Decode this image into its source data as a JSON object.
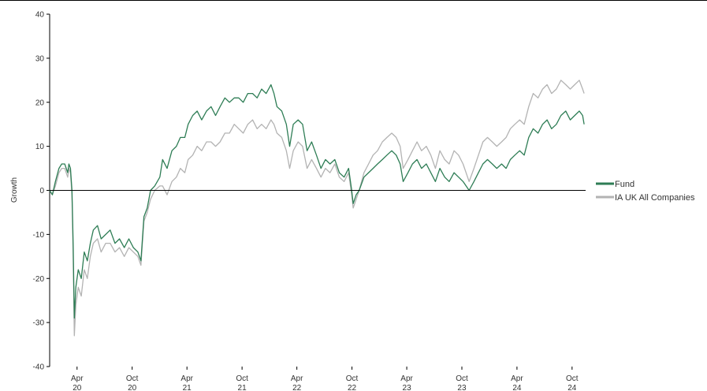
{
  "chart_data": {
    "type": "line",
    "ylabel": "Growth",
    "ylim": [
      -40,
      40
    ],
    "yticks": [
      "40",
      "30",
      "20",
      "10",
      "0",
      "-10",
      "-20",
      "-30",
      "-40"
    ],
    "xlim": [
      "2020-01-01",
      "2024-11-15"
    ],
    "xticks": [
      {
        "date": "2020-04-01",
        "month": "Apr",
        "year": "20"
      },
      {
        "date": "2020-10-01",
        "month": "Oct",
        "year": "20"
      },
      {
        "date": "2021-04-01",
        "month": "Apr",
        "year": "21"
      },
      {
        "date": "2021-10-01",
        "month": "Oct",
        "year": "21"
      },
      {
        "date": "2022-04-01",
        "month": "Apr",
        "year": "22"
      },
      {
        "date": "2022-10-01",
        "month": "Oct",
        "year": "22"
      },
      {
        "date": "2023-04-01",
        "month": "Apr",
        "year": "23"
      },
      {
        "date": "2023-10-01",
        "month": "Oct",
        "year": "23"
      },
      {
        "date": "2024-04-01",
        "month": "Apr",
        "year": "24"
      },
      {
        "date": "2024-10-01",
        "month": "Oct",
        "year": "24"
      }
    ],
    "zero_line": true,
    "grid": false,
    "legend_position": "right",
    "series": [
      {
        "name": "Fund",
        "color": "#2e7d55",
        "points": [
          [
            "2020-01-01",
            0
          ],
          [
            "2020-01-10",
            -1
          ],
          [
            "2020-01-20",
            2
          ],
          [
            "2020-02-01",
            5
          ],
          [
            "2020-02-10",
            6
          ],
          [
            "2020-02-20",
            6
          ],
          [
            "2020-03-01",
            4
          ],
          [
            "2020-03-05",
            6
          ],
          [
            "2020-03-10",
            5
          ],
          [
            "2020-03-15",
            0
          ],
          [
            "2020-03-19",
            -12
          ],
          [
            "2020-03-23",
            -29
          ],
          [
            "2020-03-28",
            -22
          ],
          [
            "2020-04-05",
            -18
          ],
          [
            "2020-04-15",
            -20
          ],
          [
            "2020-04-25",
            -14
          ],
          [
            "2020-05-05",
            -16
          ],
          [
            "2020-05-15",
            -12
          ],
          [
            "2020-05-25",
            -9
          ],
          [
            "2020-06-08",
            -8
          ],
          [
            "2020-06-20",
            -11
          ],
          [
            "2020-07-05",
            -10
          ],
          [
            "2020-07-20",
            -9
          ],
          [
            "2020-08-05",
            -12
          ],
          [
            "2020-08-20",
            -11
          ],
          [
            "2020-09-05",
            -13
          ],
          [
            "2020-09-20",
            -11
          ],
          [
            "2020-10-05",
            -13
          ],
          [
            "2020-10-20",
            -14
          ],
          [
            "2020-10-30",
            -16
          ],
          [
            "2020-11-09",
            -6
          ],
          [
            "2020-11-20",
            -4
          ],
          [
            "2020-12-01",
            0
          ],
          [
            "2020-12-15",
            1
          ],
          [
            "2021-01-01",
            3
          ],
          [
            "2021-01-10",
            7
          ],
          [
            "2021-01-25",
            5
          ],
          [
            "2021-02-10",
            9
          ],
          [
            "2021-02-25",
            10
          ],
          [
            "2021-03-10",
            12
          ],
          [
            "2021-03-25",
            12
          ],
          [
            "2021-04-05",
            15
          ],
          [
            "2021-04-20",
            17
          ],
          [
            "2021-05-05",
            18
          ],
          [
            "2021-05-20",
            16
          ],
          [
            "2021-06-05",
            18
          ],
          [
            "2021-06-20",
            19
          ],
          [
            "2021-07-05",
            17
          ],
          [
            "2021-07-20",
            19
          ],
          [
            "2021-08-05",
            21
          ],
          [
            "2021-08-20",
            20
          ],
          [
            "2021-09-05",
            21
          ],
          [
            "2021-09-20",
            21
          ],
          [
            "2021-10-05",
            20
          ],
          [
            "2021-10-20",
            22
          ],
          [
            "2021-11-05",
            22
          ],
          [
            "2021-11-20",
            21
          ],
          [
            "2021-12-05",
            23
          ],
          [
            "2021-12-20",
            22
          ],
          [
            "2022-01-05",
            24
          ],
          [
            "2022-01-15",
            22
          ],
          [
            "2022-01-25",
            19
          ],
          [
            "2022-02-10",
            18
          ],
          [
            "2022-02-25",
            15
          ],
          [
            "2022-03-08",
            10
          ],
          [
            "2022-03-20",
            15
          ],
          [
            "2022-04-05",
            16
          ],
          [
            "2022-04-20",
            15
          ],
          [
            "2022-05-05",
            9
          ],
          [
            "2022-05-20",
            11
          ],
          [
            "2022-06-05",
            8
          ],
          [
            "2022-06-20",
            5
          ],
          [
            "2022-07-05",
            7
          ],
          [
            "2022-07-20",
            6
          ],
          [
            "2022-08-05",
            7
          ],
          [
            "2022-08-20",
            4
          ],
          [
            "2022-09-05",
            3
          ],
          [
            "2022-09-20",
            5
          ],
          [
            "2022-09-30",
            0
          ],
          [
            "2022-10-05",
            -3
          ],
          [
            "2022-10-15",
            -1
          ],
          [
            "2022-10-25",
            0
          ],
          [
            "2022-11-10",
            3
          ],
          [
            "2022-11-25",
            4
          ],
          [
            "2022-12-10",
            5
          ],
          [
            "2022-12-25",
            6
          ],
          [
            "2023-01-10",
            7
          ],
          [
            "2023-01-25",
            8
          ],
          [
            "2023-02-10",
            9
          ],
          [
            "2023-02-25",
            8
          ],
          [
            "2023-03-10",
            6
          ],
          [
            "2023-03-20",
            2
          ],
          [
            "2023-04-05",
            4
          ],
          [
            "2023-04-20",
            6
          ],
          [
            "2023-05-05",
            7
          ],
          [
            "2023-05-20",
            5
          ],
          [
            "2023-06-05",
            6
          ],
          [
            "2023-06-20",
            4
          ],
          [
            "2023-07-05",
            2
          ],
          [
            "2023-07-20",
            5
          ],
          [
            "2023-08-05",
            3
          ],
          [
            "2023-08-20",
            2
          ],
          [
            "2023-09-05",
            4
          ],
          [
            "2023-09-20",
            3
          ],
          [
            "2023-10-05",
            2
          ],
          [
            "2023-10-25",
            0
          ],
          [
            "2023-11-10",
            2
          ],
          [
            "2023-11-25",
            4
          ],
          [
            "2023-12-10",
            6
          ],
          [
            "2023-12-25",
            7
          ],
          [
            "2024-01-10",
            6
          ],
          [
            "2024-01-25",
            5
          ],
          [
            "2024-02-10",
            6
          ],
          [
            "2024-02-25",
            5
          ],
          [
            "2024-03-10",
            7
          ],
          [
            "2024-03-25",
            8
          ],
          [
            "2024-04-10",
            9
          ],
          [
            "2024-04-25",
            8
          ],
          [
            "2024-05-10",
            12
          ],
          [
            "2024-05-25",
            14
          ],
          [
            "2024-06-10",
            13
          ],
          [
            "2024-06-25",
            15
          ],
          [
            "2024-07-10",
            16
          ],
          [
            "2024-07-25",
            14
          ],
          [
            "2024-08-10",
            15
          ],
          [
            "2024-08-25",
            17
          ],
          [
            "2024-09-10",
            18
          ],
          [
            "2024-09-25",
            16
          ],
          [
            "2024-10-10",
            17
          ],
          [
            "2024-10-25",
            18
          ],
          [
            "2024-11-05",
            17
          ],
          [
            "2024-11-10",
            15
          ]
        ]
      },
      {
        "name": "IA UK All Companies",
        "color": "#b3b3b3",
        "points": [
          [
            "2020-01-01",
            0
          ],
          [
            "2020-01-10",
            -1
          ],
          [
            "2020-01-20",
            1
          ],
          [
            "2020-02-01",
            4
          ],
          [
            "2020-02-10",
            5
          ],
          [
            "2020-02-20",
            5
          ],
          [
            "2020-03-01",
            3
          ],
          [
            "2020-03-05",
            5
          ],
          [
            "2020-03-10",
            4
          ],
          [
            "2020-03-15",
            -1
          ],
          [
            "2020-03-19",
            -15
          ],
          [
            "2020-03-23",
            -33
          ],
          [
            "2020-03-28",
            -26
          ],
          [
            "2020-04-05",
            -22
          ],
          [
            "2020-04-15",
            -24
          ],
          [
            "2020-04-25",
            -18
          ],
          [
            "2020-05-05",
            -20
          ],
          [
            "2020-05-15",
            -15
          ],
          [
            "2020-05-25",
            -12
          ],
          [
            "2020-06-08",
            -11
          ],
          [
            "2020-06-20",
            -14
          ],
          [
            "2020-07-05",
            -12
          ],
          [
            "2020-07-20",
            -12
          ],
          [
            "2020-08-05",
            -14
          ],
          [
            "2020-08-20",
            -13
          ],
          [
            "2020-09-05",
            -15
          ],
          [
            "2020-09-20",
            -13
          ],
          [
            "2020-10-05",
            -14
          ],
          [
            "2020-10-20",
            -15
          ],
          [
            "2020-10-30",
            -17
          ],
          [
            "2020-11-09",
            -7
          ],
          [
            "2020-11-20",
            -5
          ],
          [
            "2020-12-01",
            -2
          ],
          [
            "2020-12-15",
            0
          ],
          [
            "2021-01-01",
            1
          ],
          [
            "2021-01-10",
            1
          ],
          [
            "2021-01-25",
            -1
          ],
          [
            "2021-02-10",
            2
          ],
          [
            "2021-02-25",
            3
          ],
          [
            "2021-03-10",
            5
          ],
          [
            "2021-03-25",
            4
          ],
          [
            "2021-04-05",
            7
          ],
          [
            "2021-04-20",
            8
          ],
          [
            "2021-05-05",
            10
          ],
          [
            "2021-05-20",
            9
          ],
          [
            "2021-06-05",
            11
          ],
          [
            "2021-06-20",
            11
          ],
          [
            "2021-07-05",
            10
          ],
          [
            "2021-07-20",
            11
          ],
          [
            "2021-08-05",
            13
          ],
          [
            "2021-08-20",
            13
          ],
          [
            "2021-09-05",
            15
          ],
          [
            "2021-09-20",
            14
          ],
          [
            "2021-10-05",
            13
          ],
          [
            "2021-10-20",
            15
          ],
          [
            "2021-11-05",
            16
          ],
          [
            "2021-11-20",
            14
          ],
          [
            "2021-12-05",
            15
          ],
          [
            "2021-12-20",
            14
          ],
          [
            "2022-01-05",
            16
          ],
          [
            "2022-01-15",
            15
          ],
          [
            "2022-01-25",
            13
          ],
          [
            "2022-02-10",
            12
          ],
          [
            "2022-02-25",
            9
          ],
          [
            "2022-03-08",
            5
          ],
          [
            "2022-03-20",
            9
          ],
          [
            "2022-04-05",
            11
          ],
          [
            "2022-04-20",
            10
          ],
          [
            "2022-05-05",
            5
          ],
          [
            "2022-05-20",
            7
          ],
          [
            "2022-06-05",
            5
          ],
          [
            "2022-06-20",
            3
          ],
          [
            "2022-07-05",
            5
          ],
          [
            "2022-07-20",
            4
          ],
          [
            "2022-08-05",
            6
          ],
          [
            "2022-08-20",
            3
          ],
          [
            "2022-09-05",
            2
          ],
          [
            "2022-09-20",
            4
          ],
          [
            "2022-09-30",
            -1
          ],
          [
            "2022-10-05",
            -4
          ],
          [
            "2022-10-15",
            -2
          ],
          [
            "2022-10-25",
            0
          ],
          [
            "2022-11-10",
            4
          ],
          [
            "2022-11-25",
            6
          ],
          [
            "2022-12-10",
            8
          ],
          [
            "2022-12-25",
            9
          ],
          [
            "2023-01-10",
            11
          ],
          [
            "2023-01-25",
            12
          ],
          [
            "2023-02-10",
            13
          ],
          [
            "2023-02-25",
            12
          ],
          [
            "2023-03-10",
            10
          ],
          [
            "2023-03-20",
            5
          ],
          [
            "2023-04-05",
            7
          ],
          [
            "2023-04-20",
            9
          ],
          [
            "2023-05-05",
            11
          ],
          [
            "2023-05-20",
            9
          ],
          [
            "2023-06-05",
            10
          ],
          [
            "2023-06-20",
            8
          ],
          [
            "2023-07-05",
            5
          ],
          [
            "2023-07-20",
            9
          ],
          [
            "2023-08-05",
            7
          ],
          [
            "2023-08-20",
            6
          ],
          [
            "2023-09-05",
            9
          ],
          [
            "2023-09-20",
            8
          ],
          [
            "2023-10-05",
            6
          ],
          [
            "2023-10-25",
            2
          ],
          [
            "2023-11-10",
            5
          ],
          [
            "2023-11-25",
            8
          ],
          [
            "2023-12-10",
            11
          ],
          [
            "2023-12-25",
            12
          ],
          [
            "2024-01-10",
            11
          ],
          [
            "2024-01-25",
            10
          ],
          [
            "2024-02-10",
            11
          ],
          [
            "2024-02-25",
            12
          ],
          [
            "2024-03-10",
            14
          ],
          [
            "2024-03-25",
            15
          ],
          [
            "2024-04-10",
            16
          ],
          [
            "2024-04-25",
            15
          ],
          [
            "2024-05-10",
            19
          ],
          [
            "2024-05-25",
            22
          ],
          [
            "2024-06-10",
            21
          ],
          [
            "2024-06-25",
            23
          ],
          [
            "2024-07-10",
            24
          ],
          [
            "2024-07-25",
            22
          ],
          [
            "2024-08-10",
            23
          ],
          [
            "2024-08-25",
            25
          ],
          [
            "2024-09-10",
            24
          ],
          [
            "2024-09-25",
            23
          ],
          [
            "2024-10-10",
            24
          ],
          [
            "2024-10-25",
            25
          ],
          [
            "2024-11-05",
            23
          ],
          [
            "2024-11-10",
            22
          ]
        ]
      }
    ]
  }
}
